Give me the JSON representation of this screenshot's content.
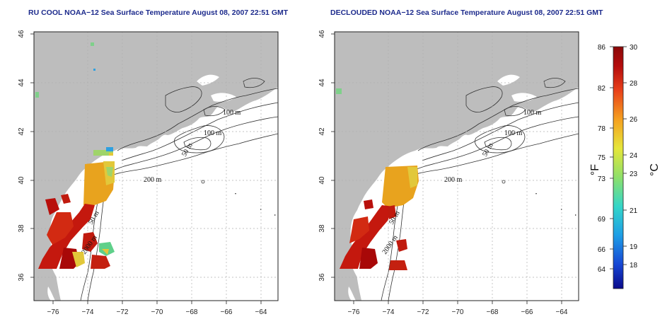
{
  "panels": [
    {
      "title": "RU COOL NOAA−12 Sea Surface Temperature August 08, 2007 22:51 GMT",
      "contour_labels": [
        "100 m",
        "100 m",
        "50 m",
        "200 m",
        "50 m",
        "2000 m"
      ]
    },
    {
      "title": "DECLOUDED NOAA−12 Sea Surface Temperature August 08, 2007 22:51 GMT",
      "contour_labels": [
        "100 m",
        "100 m",
        "50 m",
        "200 m",
        "50 m",
        "2000 m"
      ]
    }
  ],
  "x_ticks": [
    "−76",
    "−74",
    "−72",
    "−70",
    "−68",
    "−66",
    "−64"
  ],
  "y_ticks": [
    "36",
    "38",
    "40",
    "42",
    "44",
    "46"
  ],
  "colorbar": {
    "fahrenheit_ticks": [
      "86",
      "82",
      "78",
      "75",
      "73",
      "69",
      "66",
      "64"
    ],
    "celsius_ticks": [
      "30",
      "28",
      "26",
      "24",
      "23",
      "21",
      "19",
      "18"
    ],
    "fahrenheit_unit": "°F",
    "celsius_unit": "°C",
    "colors": [
      "#0a0a8a",
      "#1646d4",
      "#1e9ee6",
      "#34d6c8",
      "#8ee06a",
      "#e6e63a",
      "#f5a020",
      "#e8401a",
      "#b40c0c",
      "#8a0808"
    ]
  },
  "colors": {
    "land": "#bdbdbd",
    "ocean": "#ffffff",
    "contour": "#333333",
    "grid": "#b0b0b0",
    "title": "#1c2a8c"
  }
}
